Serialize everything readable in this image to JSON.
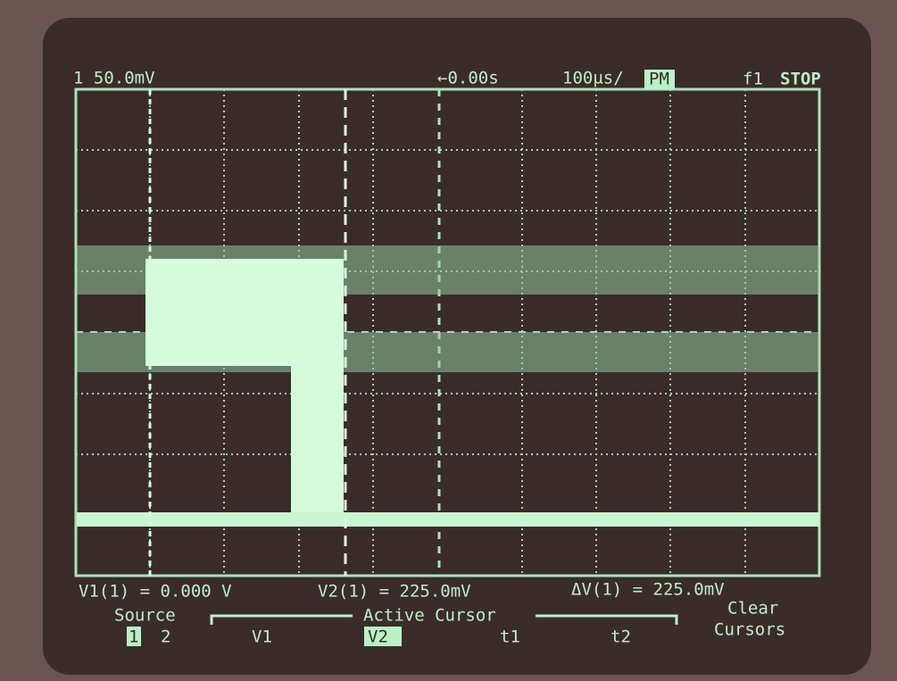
{
  "header": {
    "channel_scale": "1 50.0mV",
    "delay": "←0.00s",
    "timebase": "100µs/",
    "mode": "PM",
    "trigger": "f1",
    "status": "STOP"
  },
  "readouts": [
    "V1(1) = 0.000 V",
    "V2(1) = 225.0mV",
    "ΔV(1) = 225.0mV"
  ],
  "softkeys": {
    "source_label": "Source",
    "source_options": [
      "1",
      "2"
    ],
    "active_cursor_label": "Active Cursor",
    "cursors": [
      "V1",
      "V2",
      "t1",
      "t2"
    ],
    "clear": [
      "Clear",
      "Cursors"
    ]
  }
}
